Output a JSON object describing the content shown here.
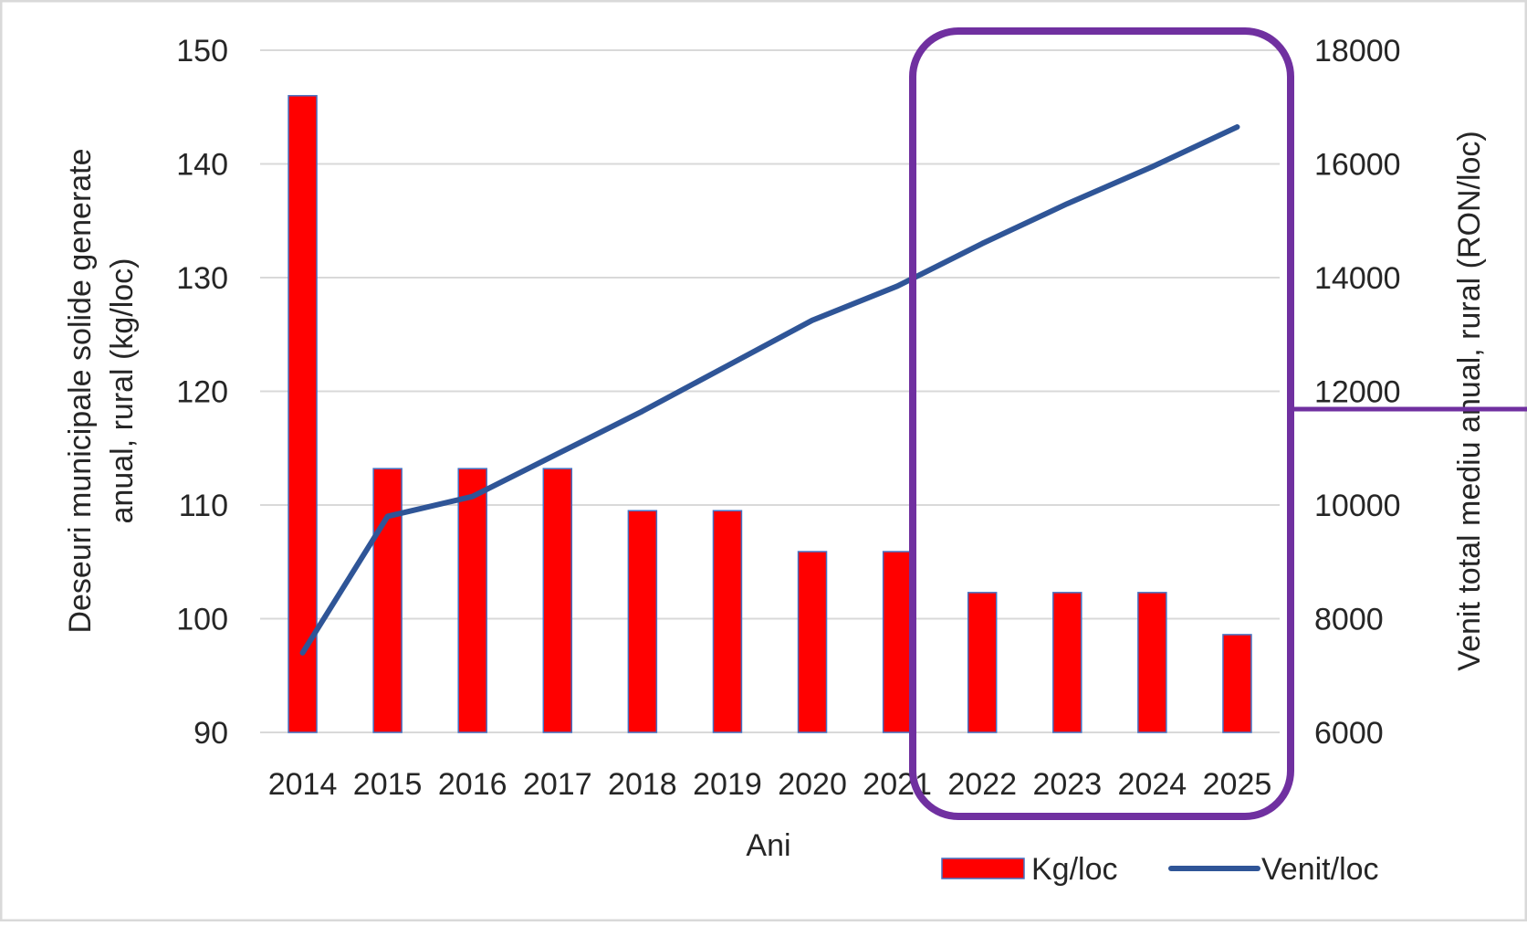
{
  "chart_data": {
    "type": "bar",
    "categories": [
      "2014",
      "2015",
      "2016",
      "2017",
      "2018",
      "2019",
      "2020",
      "2021",
      "2022",
      "2023",
      "2024",
      "2025"
    ],
    "xlabel": "Ani",
    "ylabel_left_line1": "Deseuri municipale solide generate",
    "ylabel_left_line2": "anual, rural (kg/loc)",
    "ylabel_right": "Venit  total mediu anual, rural (RON/loc)",
    "ylim_left": [
      90,
      150
    ],
    "yticks_left": [
      "90",
      "100",
      "110",
      "120",
      "130",
      "140",
      "150"
    ],
    "ylim_right": [
      6000,
      18000
    ],
    "yticks_right": [
      "6000",
      "8000",
      "10000",
      "12000",
      "14000",
      "16000",
      "18000"
    ],
    "grid": true,
    "legend_position": "bottom-right",
    "series": [
      {
        "name": "Kg/loc",
        "type": "bar",
        "axis": "left",
        "color": "#ff0000",
        "values": [
          146,
          113.2,
          113.2,
          113.2,
          109.5,
          109.5,
          105.9,
          105.9,
          102.3,
          102.3,
          102.3,
          98.6
        ]
      },
      {
        "name": "Venit/loc",
        "type": "line",
        "axis": "right",
        "color": "#2f5597",
        "values": [
          7400,
          9800,
          10150,
          10900,
          11650,
          12450,
          13250,
          13850,
          14600,
          15300,
          15950,
          16650
        ]
      }
    ],
    "highlight": {
      "shape": "rounded-rectangle",
      "color": "#7030a0",
      "covers_categories": [
        "2022",
        "2023",
        "2024",
        "2025"
      ]
    }
  }
}
